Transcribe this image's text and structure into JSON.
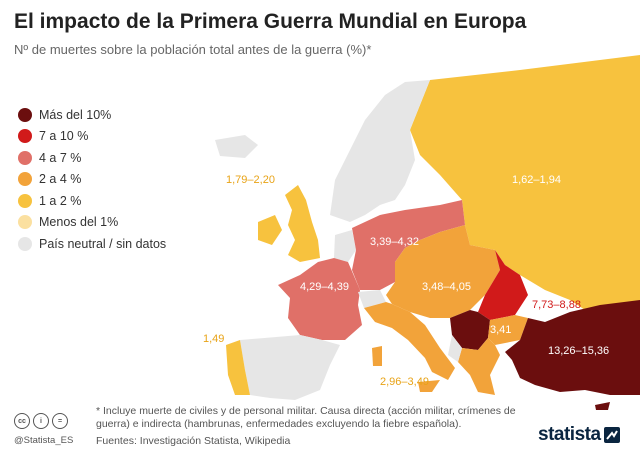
{
  "title": "El impacto de la Primera Guerra Mundial en Europa",
  "subtitle": "Nº de muertes sobre la población total antes de la guerra (%)*",
  "colors": {
    "mas10": "#6b0e0e",
    "r7a10": "#d11a1a",
    "r4a7": "#e07068",
    "r2a4": "#f2a33a",
    "r1a2": "#f7c23e",
    "menos1": "#fbe0a0",
    "neutral": "#e6e6e6"
  },
  "legend": [
    {
      "label": "Más del 10%",
      "color": "#6b0e0e"
    },
    {
      "label": "7 a 10 %",
      "color": "#d11a1a"
    },
    {
      "label": "4 a 7 %",
      "color": "#e07068"
    },
    {
      "label": "2 a 4 %",
      "color": "#f2a33a"
    },
    {
      "label": "1 a 2 %",
      "color": "#f7c23e"
    },
    {
      "label": "Menos del 1%",
      "color": "#fbe0a0"
    },
    {
      "label": "País neutral / sin datos",
      "color": "#e6e6e6"
    }
  ],
  "map_labels": {
    "uk": "1,79–2,20",
    "russia": "1,62–1,94",
    "germany": "3,39–4,32",
    "france": "4,29–4,39",
    "austria_hungary": "3,48–4,05",
    "romania": "7,73–8,88",
    "bulgaria": "3,41",
    "ottoman": "13,26–15,36",
    "portugal": "1,49",
    "italy": "2,96–3,49"
  },
  "footnote": "* Incluye muerte de civiles y de personal militar. Causa directa (acción militar, crímenes de guerra) e indirecta (hambrunas, enfermedades excluyendo la fiebre española).",
  "source": "Fuentes: Investigación Statista, Wikipedia",
  "handle": "@Statista_ES",
  "brand": "statista",
  "cc_icons": [
    "cc",
    "i",
    "="
  ]
}
